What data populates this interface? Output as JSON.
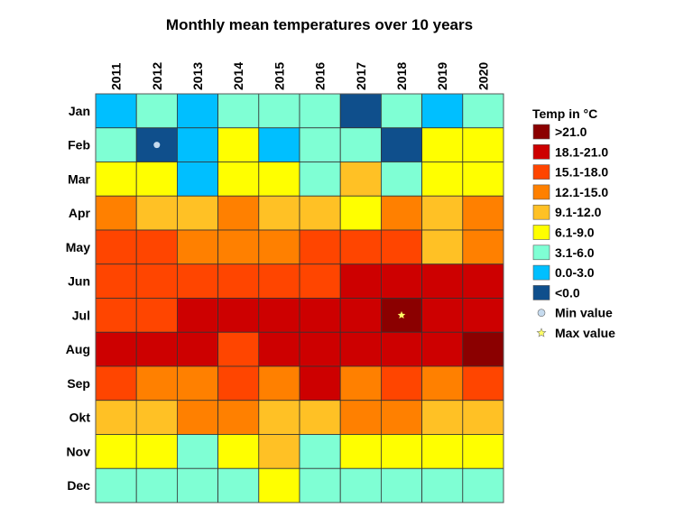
{
  "chart_data": {
    "type": "heatmap",
    "title": "Monthly mean temperatures over 10 years",
    "x": [
      "2011",
      "2012",
      "2013",
      "2014",
      "2015",
      "2016",
      "2017",
      "2018",
      "2019",
      "2020"
    ],
    "y": [
      "Jan",
      "Feb",
      "Mar",
      "Apr",
      "May",
      "Jun",
      "Jul",
      "Aug",
      "Sep",
      "Okt",
      "Nov",
      "Dec"
    ],
    "bins": [
      {
        "label": "<0.0",
        "color": "#0f4f8c"
      },
      {
        "label": "0.0-3.0",
        "color": "#00bfff"
      },
      {
        "label": "3.1-6.0",
        "color": "#7fffd4"
      },
      {
        "label": "6.1-9.0",
        "color": "#ffff00"
      },
      {
        "label": "9.1-12.0",
        "color": "#ffc125"
      },
      {
        "label": "12.1-15.0",
        "color": "#ff8000"
      },
      {
        "label": "15.1-18.0",
        "color": "#ff4500"
      },
      {
        "label": "18.1-21.0",
        "color": "#cd0000"
      },
      {
        "label": ">21.0",
        "color": "#8b0000"
      }
    ],
    "bin_index_matrix": [
      [
        1,
        2,
        1,
        2,
        2,
        2,
        0,
        2,
        1,
        2
      ],
      [
        2,
        0,
        1,
        3,
        1,
        2,
        2,
        0,
        3,
        3
      ],
      [
        3,
        3,
        1,
        3,
        3,
        2,
        4,
        2,
        3,
        3
      ],
      [
        5,
        4,
        4,
        5,
        4,
        4,
        3,
        5,
        4,
        5
      ],
      [
        6,
        6,
        5,
        5,
        5,
        6,
        6,
        6,
        4,
        5
      ],
      [
        6,
        6,
        6,
        6,
        6,
        6,
        7,
        7,
        7,
        7
      ],
      [
        6,
        6,
        7,
        7,
        7,
        7,
        7,
        8,
        7,
        7
      ],
      [
        7,
        7,
        7,
        6,
        7,
        7,
        7,
        7,
        7,
        8
      ],
      [
        6,
        5,
        5,
        6,
        5,
        7,
        5,
        6,
        5,
        6
      ],
      [
        4,
        4,
        5,
        5,
        4,
        4,
        5,
        5,
        4,
        4
      ],
      [
        3,
        3,
        2,
        3,
        4,
        2,
        3,
        3,
        3,
        3
      ],
      [
        2,
        2,
        2,
        2,
        3,
        2,
        2,
        2,
        2,
        2
      ]
    ],
    "min_marker": {
      "year": "2012",
      "month": "Feb",
      "color": "#c6dbef"
    },
    "max_marker": {
      "year": "2018",
      "month": "Jul",
      "color": "#ffff66"
    },
    "legend": {
      "title": "Temp in °C",
      "placement": "right",
      "min_label": "Min value",
      "max_label": "Max value"
    }
  }
}
